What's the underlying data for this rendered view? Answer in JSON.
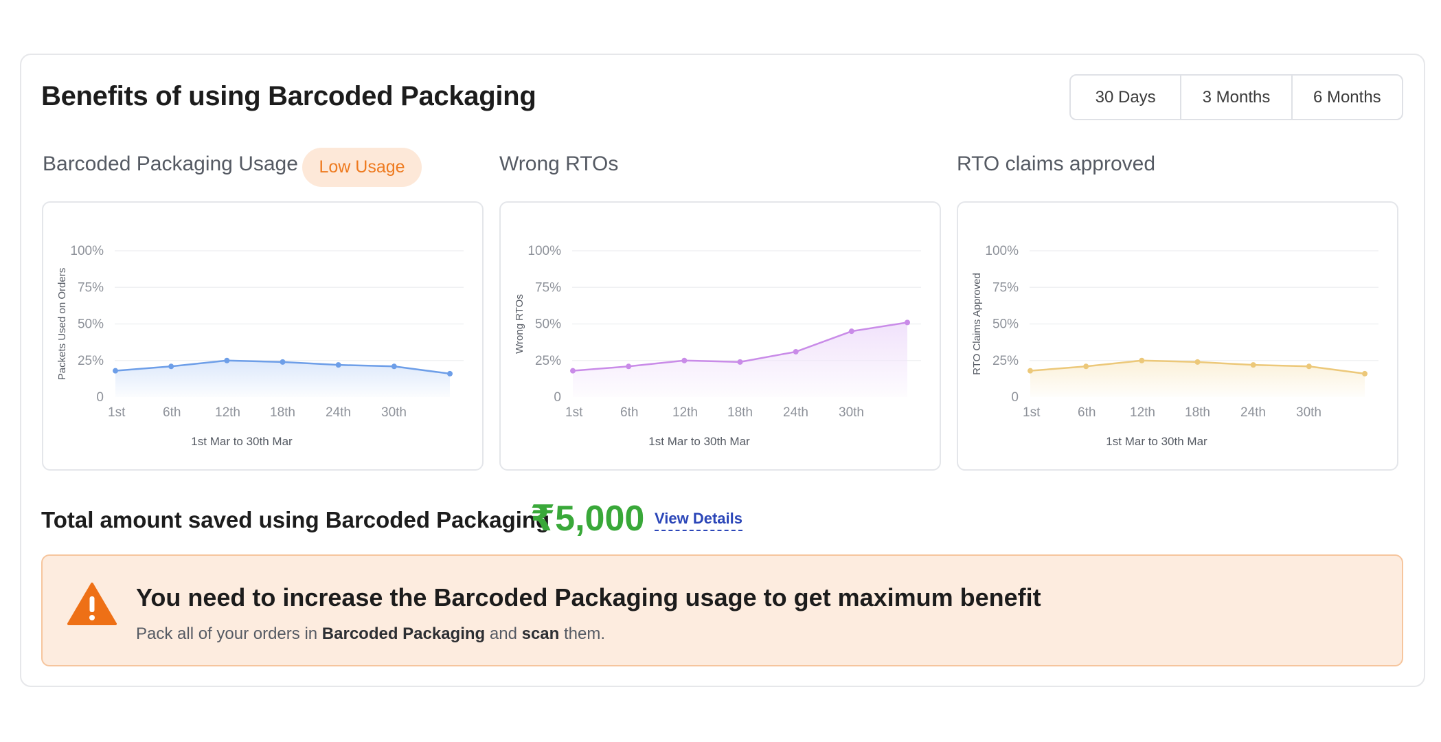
{
  "header": {
    "title": "Benefits of using Barcoded Packaging",
    "ranges": [
      {
        "label": "30 Days",
        "active": true
      },
      {
        "label": "3 Months",
        "active": false
      },
      {
        "label": "6 Months",
        "active": false
      }
    ]
  },
  "badge": {
    "label": "Low Usage"
  },
  "charts": [
    {
      "section_title": "Barcoded Packaging Usage",
      "ylabel": "Packets Used on Orders",
      "xcaption": "1st Mar to 30th Mar",
      "color": "#6d9ee8",
      "fill": "#dce8fb"
    },
    {
      "section_title": "Wrong RTOs",
      "ylabel": "Wrong RTOs",
      "xcaption": "1st Mar to 30th Mar",
      "color": "#c98be8",
      "fill": "#f1e2fb"
    },
    {
      "section_title": "RTO claims approved",
      "ylabel": "RTO Claims Approved",
      "xcaption": "1st Mar to 30th Mar",
      "color": "#ecc879",
      "fill": "#fbf1d9"
    }
  ],
  "chart_data": [
    {
      "type": "area",
      "title": "Barcoded Packaging Usage",
      "ylabel": "Packets Used on Orders",
      "xlabel": "1st Mar to 30th Mar",
      "categories": [
        "1st",
        "6th",
        "12th",
        "18th",
        "24th",
        "30th",
        ""
      ],
      "yticks": [
        "0",
        "25%",
        "50%",
        "75%",
        "100%"
      ],
      "ylim": [
        0,
        100
      ],
      "values": [
        18,
        21,
        25,
        24,
        22,
        21,
        16
      ]
    },
    {
      "type": "area",
      "title": "Wrong RTOs",
      "ylabel": "Wrong RTOs",
      "xlabel": "1st Mar to 30th Mar",
      "categories": [
        "1st",
        "6th",
        "12th",
        "18th",
        "24th",
        "30th",
        ""
      ],
      "yticks": [
        "0",
        "25%",
        "50%",
        "75%",
        "100%"
      ],
      "ylim": [
        0,
        100
      ],
      "values": [
        18,
        21,
        25,
        24,
        31,
        45,
        51
      ]
    },
    {
      "type": "area",
      "title": "RTO claims approved",
      "ylabel": "RTO Claims Approved",
      "xlabel": "1st Mar to 30th Mar",
      "categories": [
        "1st",
        "6th",
        "12th",
        "18th",
        "24th",
        "30th",
        ""
      ],
      "yticks": [
        "0",
        "25%",
        "50%",
        "75%",
        "100%"
      ],
      "ylim": [
        0,
        100
      ],
      "values": [
        18,
        21,
        25,
        24,
        22,
        21,
        16
      ]
    }
  ],
  "savings": {
    "label": "Total amount saved using Barcoded Packaging",
    "amount": "₹5,000",
    "link": "View Details"
  },
  "alert": {
    "icon": "warning-icon",
    "title": "You need to increase the Barcoded Packaging usage to get maximum benefit",
    "text_prefix": "Pack all of your orders in ",
    "text_bold1": "Barcoded Packaging",
    "text_mid": " and ",
    "text_bold2": "scan",
    "text_suffix": " them."
  }
}
